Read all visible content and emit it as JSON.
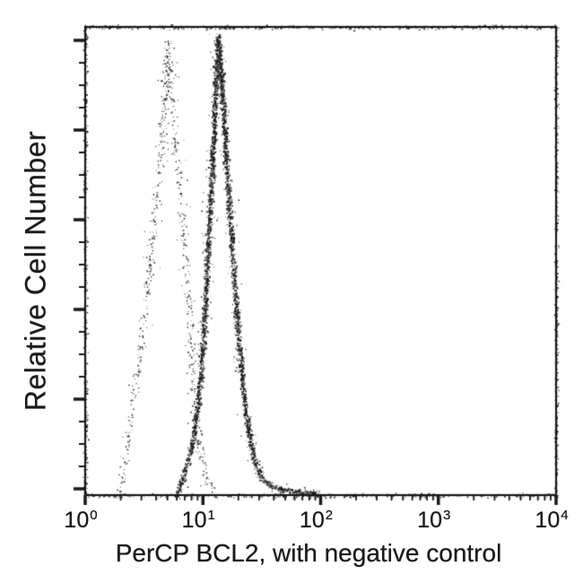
{
  "figure": {
    "background": "#ffffff",
    "ink": "#1a1a1a"
  },
  "chart_data": {
    "type": "line",
    "subtype": "flow_cytometry_histogram_overlay",
    "title": "",
    "xlabel": "PerCP BCL2, with negative control",
    "ylabel": "Relative Cell Number",
    "x_scale": "log10",
    "xlim": [
      1,
      10000
    ],
    "ylim": [
      0,
      1
    ],
    "grid": false,
    "legend": "none",
    "x_ticks": [
      {
        "base": "10",
        "exp": "0",
        "value": 1
      },
      {
        "base": "10",
        "exp": "1",
        "value": 10
      },
      {
        "base": "10",
        "exp": "2",
        "value": 100
      },
      {
        "base": "10",
        "exp": "3",
        "value": 1000
      },
      {
        "base": "10",
        "exp": "4",
        "value": 10000
      }
    ],
    "x_minor_ticks_per_decade": [
      2,
      3,
      4,
      5,
      6,
      7,
      8,
      9
    ],
    "y_axis": {
      "tick_count": 21,
      "major_every": 4,
      "tick_labels": "none"
    },
    "series": [
      {
        "name": "negative control",
        "render": "sparse_stipple",
        "peak_x": 5,
        "peak_height": 0.97,
        "points": [
          [
            1.9,
            0
          ],
          [
            2.15,
            0.07
          ],
          [
            2.4,
            0.15
          ],
          [
            2.8,
            0.27
          ],
          [
            3.15,
            0.39
          ],
          [
            3.55,
            0.5
          ],
          [
            3.9,
            0.6
          ],
          [
            4.25,
            0.71
          ],
          [
            4.55,
            0.81
          ],
          [
            4.85,
            0.91
          ],
          [
            5.05,
            0.97
          ],
          [
            5.3,
            0.89
          ],
          [
            5.55,
            0.8
          ],
          [
            5.8,
            0.73
          ],
          [
            6.2,
            0.7
          ],
          [
            6.6,
            0.6
          ],
          [
            7.15,
            0.5
          ],
          [
            7.5,
            0.41
          ],
          [
            7.85,
            0.31
          ],
          [
            8.3,
            0.2
          ],
          [
            9.3,
            0.09
          ],
          [
            10.7,
            0.03
          ],
          [
            12.6,
            0.01
          ],
          [
            13.8,
            0
          ]
        ]
      },
      {
        "name": "PerCP BCL2",
        "render": "dense_stipple",
        "peak_x": 13.3,
        "peak_height": 0.98,
        "points": [
          [
            5.8,
            0
          ],
          [
            6.6,
            0.03
          ],
          [
            7.9,
            0.1
          ],
          [
            9.1,
            0.2
          ],
          [
            10,
            0.33
          ],
          [
            10.7,
            0.48
          ],
          [
            11.5,
            0.63
          ],
          [
            12.2,
            0.76
          ],
          [
            12.7,
            0.87
          ],
          [
            13.3,
            0.98
          ],
          [
            14,
            0.93
          ],
          [
            14.6,
            0.85
          ],
          [
            15.5,
            0.73
          ],
          [
            16.6,
            0.62
          ],
          [
            17.8,
            0.5
          ],
          [
            19.3,
            0.38
          ],
          [
            20.9,
            0.28
          ],
          [
            22.4,
            0.2
          ],
          [
            24.5,
            0.13
          ],
          [
            27.5,
            0.07
          ],
          [
            31.6,
            0.035
          ],
          [
            38,
            0.02
          ],
          [
            50,
            0.012
          ],
          [
            71,
            0.007
          ],
          [
            95,
            0.002
          ]
        ]
      }
    ]
  }
}
